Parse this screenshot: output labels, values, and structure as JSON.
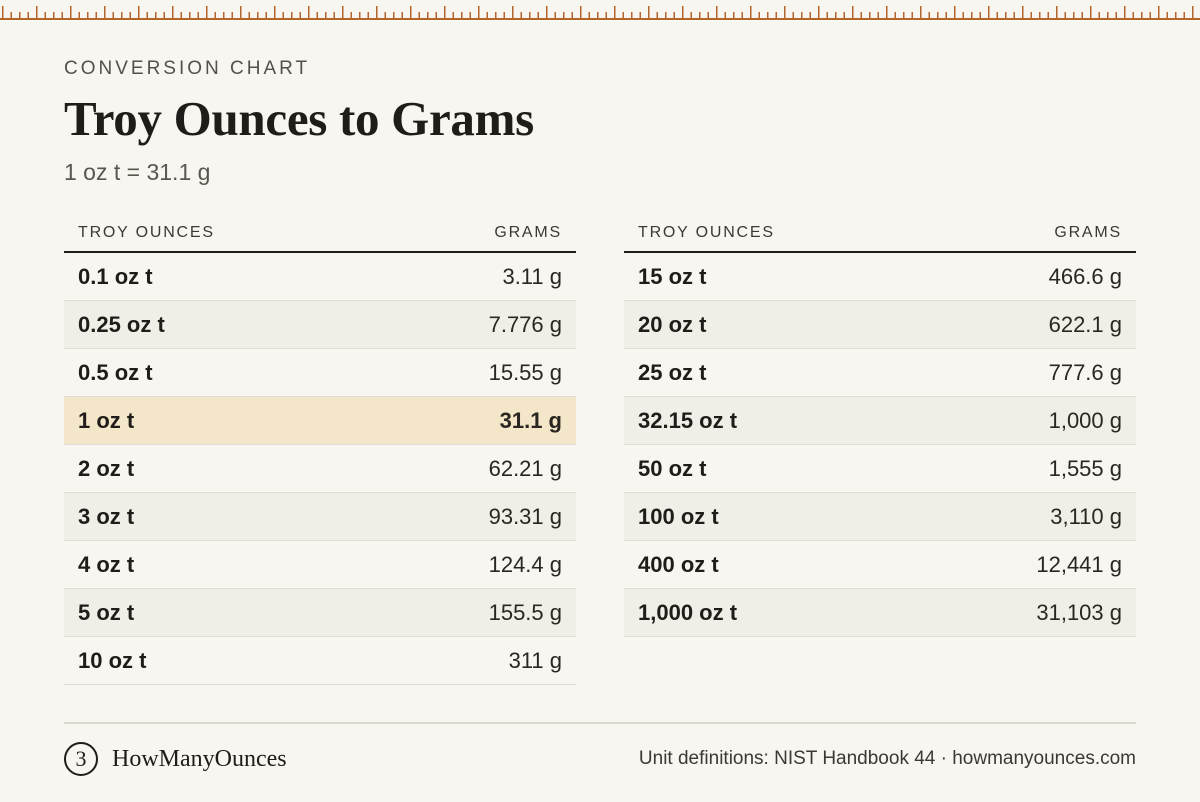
{
  "header": {
    "eyebrow": "CONVERSION CHART",
    "title": "Troy Ounces to Grams",
    "subtitle": "1 oz t = 31.1 g"
  },
  "tables": [
    {
      "headers": {
        "left": "TROY OUNCES",
        "right": "GRAMS"
      },
      "rows": [
        {
          "oz": "0.1 oz t",
          "g": "3.11 g"
        },
        {
          "oz": "0.25 oz t",
          "g": "7.776 g"
        },
        {
          "oz": "0.5 oz t",
          "g": "15.55 g"
        },
        {
          "oz": "1 oz t",
          "g": "31.1 g",
          "highlight": true
        },
        {
          "oz": "2 oz t",
          "g": "62.21 g"
        },
        {
          "oz": "3 oz t",
          "g": "93.31 g"
        },
        {
          "oz": "4 oz t",
          "g": "124.4 g"
        },
        {
          "oz": "5 oz t",
          "g": "155.5 g"
        },
        {
          "oz": "10 oz t",
          "g": "311 g"
        }
      ]
    },
    {
      "headers": {
        "left": "TROY OUNCES",
        "right": "GRAMS"
      },
      "rows": [
        {
          "oz": "15 oz t",
          "g": "466.6 g"
        },
        {
          "oz": "20 oz t",
          "g": "622.1 g"
        },
        {
          "oz": "25 oz t",
          "g": "777.6 g"
        },
        {
          "oz": "32.15 oz t",
          "g": "1,000 g"
        },
        {
          "oz": "50 oz t",
          "g": "1,555 g"
        },
        {
          "oz": "100 oz t",
          "g": "3,110 g"
        },
        {
          "oz": "400 oz t",
          "g": "12,441 g"
        },
        {
          "oz": "1,000 oz t",
          "g": "31,103 g"
        }
      ]
    }
  ],
  "footer": {
    "brand_logo": "3",
    "brand_name": "HowManyOunces",
    "note": "Unit definitions: NIST Handbook 44 · howmanyounces.com"
  },
  "colors": {
    "ruler": "#b5642b",
    "background": "#f8f6f1",
    "highlight": "#f4e6c8"
  },
  "icons": {
    "ruler": "ruler-ticks-decoration",
    "brand": "brand-logo-icon"
  }
}
